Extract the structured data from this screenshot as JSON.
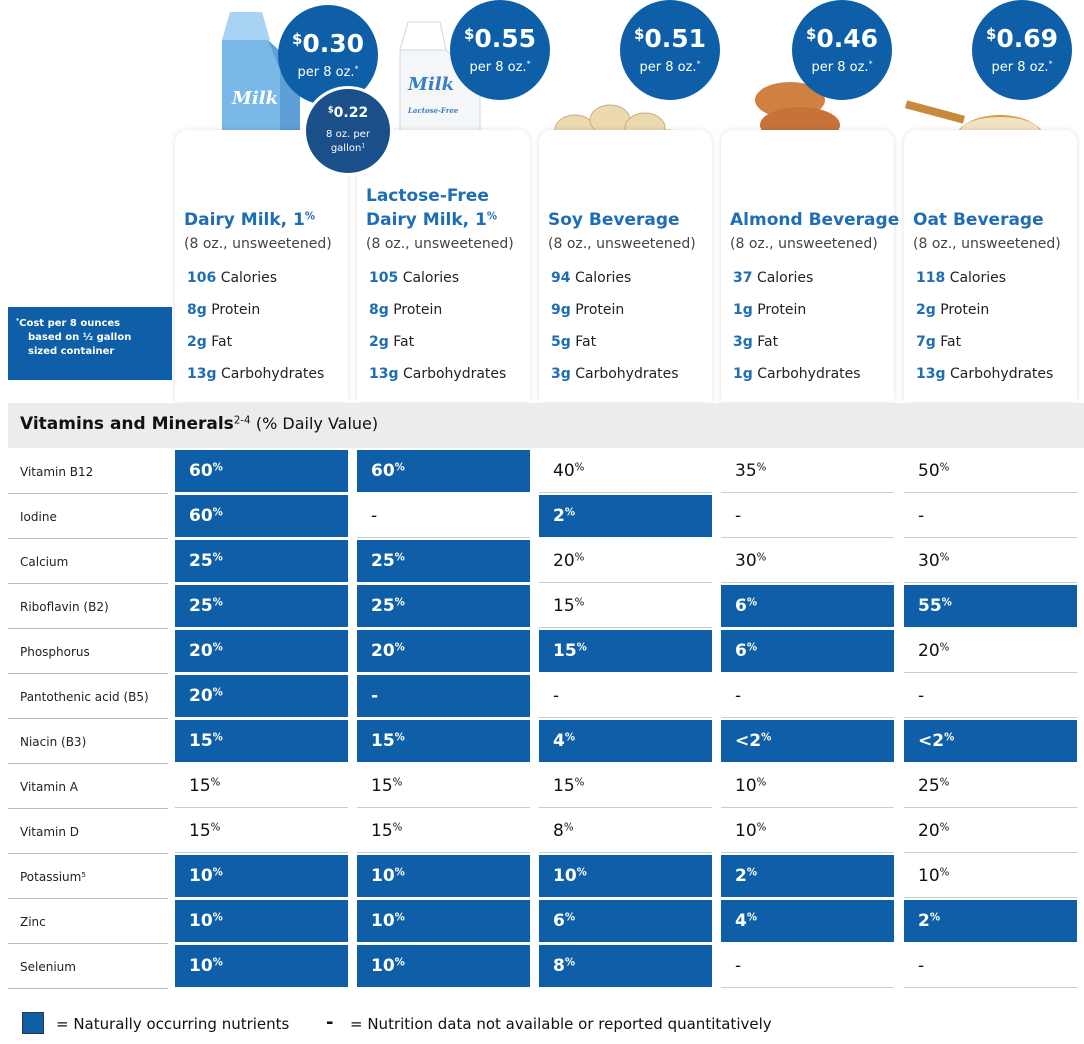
{
  "products": [
    {
      "package_text": [
        "Milk"
      ],
      "price": {
        "currency": "$",
        "amount": "0.30",
        "unit": "per 8 oz.",
        "mark": "*"
      },
      "gallon_price": {
        "currency": "$",
        "amount": "0.22",
        "line1": "8 oz. per",
        "line2": "gallon",
        "mark": "1"
      },
      "name_lines": [
        "Dairy Milk, 1"
      ],
      "name_sup": "%",
      "serving": "(8 oz., unsweetened)",
      "nutrients": [
        {
          "amount": "106",
          "label": "Calories"
        },
        {
          "amount": "8g",
          "label": "Protein"
        },
        {
          "amount": "2g",
          "label": "Fat"
        },
        {
          "amount": "13g",
          "label": "Carbohydrates"
        }
      ]
    },
    {
      "package_text": [
        "Milk",
        "Lactose-Free"
      ],
      "price": {
        "currency": "$",
        "amount": "0.55",
        "unit": "per 8 oz.",
        "mark": "*"
      },
      "name_lines": [
        "Lactose-Free",
        "Dairy Milk, 1"
      ],
      "name_sup": "%",
      "serving": "(8 oz., unsweetened)",
      "nutrients": [
        {
          "amount": "105",
          "label": "Calories"
        },
        {
          "amount": "8g",
          "label": "Protein"
        },
        {
          "amount": "2g",
          "label": "Fat"
        },
        {
          "amount": "13g",
          "label": "Carbohydrates"
        }
      ]
    },
    {
      "price": {
        "currency": "$",
        "amount": "0.51",
        "unit": "per 8 oz.",
        "mark": "*"
      },
      "name_lines": [
        "Soy Beverage"
      ],
      "serving": "(8 oz., unsweetened)",
      "nutrients": [
        {
          "amount": "94",
          "label": "Calories"
        },
        {
          "amount": "9g",
          "label": "Protein"
        },
        {
          "amount": "5g",
          "label": "Fat"
        },
        {
          "amount": "3g",
          "label": "Carbohydrates"
        }
      ]
    },
    {
      "price": {
        "currency": "$",
        "amount": "0.46",
        "unit": "per 8 oz.",
        "mark": "*"
      },
      "name_lines": [
        "Almond Beverage"
      ],
      "serving": "(8 oz., unsweetened)",
      "nutrients": [
        {
          "amount": "37",
          "label": "Calories"
        },
        {
          "amount": "1g",
          "label": "Protein"
        },
        {
          "amount": "3g",
          "label": "Fat"
        },
        {
          "amount": "1g",
          "label": "Carbohydrates"
        }
      ]
    },
    {
      "price": {
        "currency": "$",
        "amount": "0.69",
        "unit": "per 8 oz.",
        "mark": "*"
      },
      "name_lines": [
        "Oat Beverage"
      ],
      "serving": "(8 oz., unsweetened)",
      "nutrients": [
        {
          "amount": "118",
          "label": "Calories"
        },
        {
          "amount": "2g",
          "label": "Protein"
        },
        {
          "amount": "7g",
          "label": "Fat"
        },
        {
          "amount": "13g",
          "label": "Carbohydrates"
        }
      ]
    }
  ],
  "note": {
    "mark": "*",
    "lines": [
      "Cost per 8 ounces",
      "based on ½ gallon",
      "sized container"
    ]
  },
  "section": {
    "title": "Vitamins and Minerals",
    "sup": "2-4",
    "suffix": "(% Daily Value)"
  },
  "rows": [
    {
      "name": "Vitamin B12",
      "cells": [
        {
          "v": "60",
          "sup": "%",
          "natural": true
        },
        {
          "v": "60",
          "sup": "%",
          "natural": true
        },
        {
          "v": "40",
          "sup": "%",
          "natural": false
        },
        {
          "v": "35",
          "sup": "%",
          "natural": false
        },
        {
          "v": "50",
          "sup": "%",
          "natural": false
        }
      ]
    },
    {
      "name": "Iodine",
      "cells": [
        {
          "v": "60",
          "sup": "%",
          "natural": true
        },
        {
          "v": "-",
          "natural": false
        },
        {
          "v": "2",
          "sup": "%",
          "natural": true
        },
        {
          "v": "-",
          "natural": false
        },
        {
          "v": "-",
          "natural": false
        }
      ]
    },
    {
      "name": "Calcium",
      "cells": [
        {
          "v": "25",
          "sup": "%",
          "natural": true
        },
        {
          "v": "25",
          "sup": "%",
          "natural": true
        },
        {
          "v": "20",
          "sup": "%",
          "natural": false
        },
        {
          "v": "30",
          "sup": "%",
          "natural": false
        },
        {
          "v": "30",
          "sup": "%",
          "natural": false
        }
      ]
    },
    {
      "name": "Riboflavin (B2)",
      "cells": [
        {
          "v": "25",
          "sup": "%",
          "natural": true
        },
        {
          "v": "25",
          "sup": "%",
          "natural": true
        },
        {
          "v": "15",
          "sup": "%",
          "natural": false
        },
        {
          "v": "6",
          "sup": "%",
          "natural": true
        },
        {
          "v": "55",
          "sup": "%",
          "natural": true
        }
      ]
    },
    {
      "name": "Phosphorus",
      "cells": [
        {
          "v": "20",
          "sup": "%",
          "natural": true
        },
        {
          "v": "20",
          "sup": "%",
          "natural": true
        },
        {
          "v": "15",
          "sup": "%",
          "natural": true
        },
        {
          "v": "6",
          "sup": "%",
          "natural": true
        },
        {
          "v": "20",
          "sup": "%",
          "natural": false
        }
      ]
    },
    {
      "name": "Pantothenic acid (B5)",
      "cells": [
        {
          "v": "20",
          "sup": "%",
          "natural": true
        },
        {
          "v": "-",
          "natural": true
        },
        {
          "v": "-",
          "natural": false
        },
        {
          "v": "-",
          "natural": false
        },
        {
          "v": "-",
          "natural": false
        }
      ]
    },
    {
      "name": "Niacin (B3)",
      "cells": [
        {
          "v": "15",
          "sup": "%",
          "natural": true
        },
        {
          "v": "15",
          "sup": "%",
          "natural": true
        },
        {
          "v": "4",
          "sup": "%",
          "natural": true
        },
        {
          "v": "<2",
          "sup": "%",
          "natural": true
        },
        {
          "v": "<2",
          "sup": "%",
          "natural": true
        }
      ]
    },
    {
      "name": "Vitamin A",
      "cells": [
        {
          "v": "15",
          "sup": "%",
          "natural": false
        },
        {
          "v": "15",
          "sup": "%",
          "natural": false
        },
        {
          "v": "15",
          "sup": "%",
          "natural": false
        },
        {
          "v": "10",
          "sup": "%",
          "natural": false
        },
        {
          "v": "25",
          "sup": "%",
          "natural": false
        }
      ]
    },
    {
      "name": "Vitamin D",
      "cells": [
        {
          "v": "15",
          "sup": "%",
          "natural": false
        },
        {
          "v": "15",
          "sup": "%",
          "natural": false
        },
        {
          "v": "8",
          "sup": "%",
          "natural": false
        },
        {
          "v": "10",
          "sup": "%",
          "natural": false
        },
        {
          "v": "20",
          "sup": "%",
          "natural": false
        }
      ]
    },
    {
      "name": "Potassium",
      "name_sup": "5",
      "cells": [
        {
          "v": "10",
          "sup": "%",
          "natural": true
        },
        {
          "v": "10",
          "sup": "%",
          "natural": true
        },
        {
          "v": "10",
          "sup": "%",
          "natural": true
        },
        {
          "v": "2",
          "sup": "%",
          "natural": true
        },
        {
          "v": "10",
          "sup": "%",
          "natural": false
        }
      ]
    },
    {
      "name": "Zinc",
      "cells": [
        {
          "v": "10",
          "sup": "%",
          "natural": true
        },
        {
          "v": "10",
          "sup": "%",
          "natural": true
        },
        {
          "v": "6",
          "sup": "%",
          "natural": true
        },
        {
          "v": "4",
          "sup": "%",
          "natural": true
        },
        {
          "v": "2",
          "sup": "%",
          "natural": true
        }
      ]
    },
    {
      "name": "Selenium",
      "cells": [
        {
          "v": "10",
          "sup": "%",
          "natural": true
        },
        {
          "v": "10",
          "sup": "%",
          "natural": true
        },
        {
          "v": "8",
          "sup": "%",
          "natural": true
        },
        {
          "v": "-",
          "natural": false
        },
        {
          "v": "-",
          "natural": false
        }
      ]
    }
  ],
  "legend": {
    "natural": "= Naturally occurring nutrients",
    "dash": "-",
    "missing": "= Nutrition data not available or reported quantitatively"
  }
}
